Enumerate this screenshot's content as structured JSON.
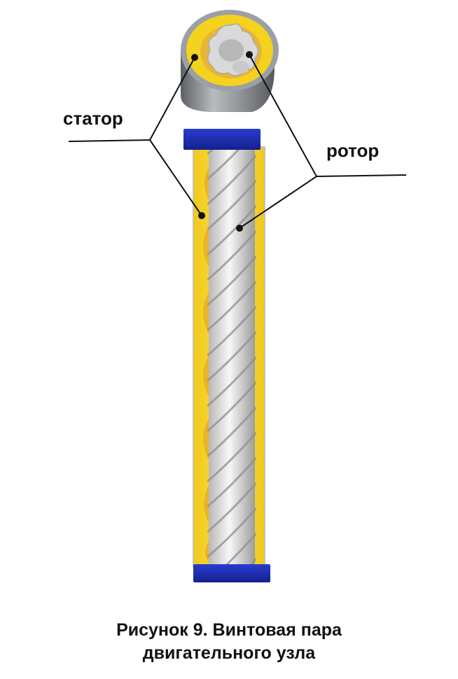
{
  "labels": {
    "stator": "статор",
    "rotor": "ротор"
  },
  "caption": {
    "line1": "Рисунок 9. Винтовая пара",
    "line2": "двигательного узла"
  },
  "colors": {
    "stator_yellow": "#f5d21e",
    "stator_shade": "#e9b02a",
    "end_cap_blue": "#1f2fb8",
    "rotor_silver": "#dcdcdc",
    "housing_gray": "#8a8e92",
    "leader_line": "#111111"
  }
}
